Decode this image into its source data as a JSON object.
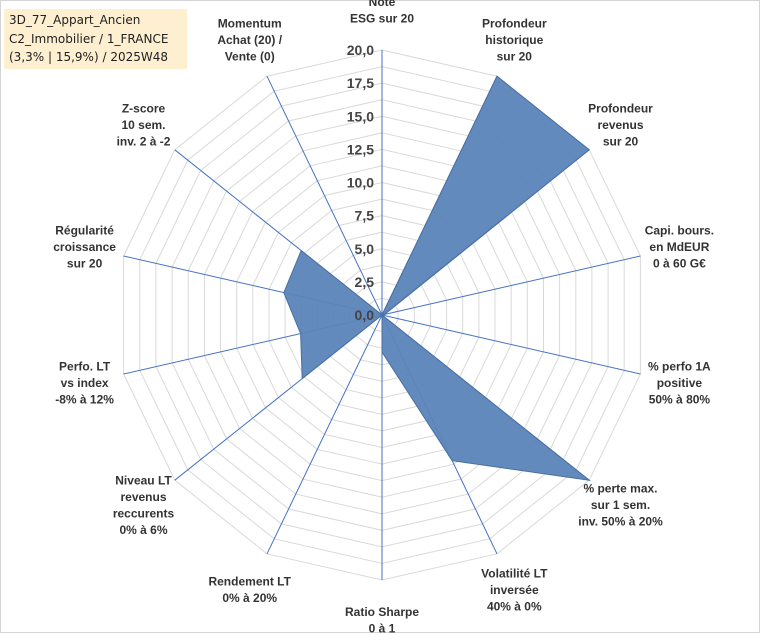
{
  "info_box": {
    "line1": "3D_77_Appart_Ancien",
    "line2": "C2_Immobilier / 1_FRANCE",
    "line3": "(3,3% | 15,9%) / 2025W48"
  },
  "colors": {
    "fill": "#5b84b8",
    "stroke": "#4a6f9f",
    "grid": "#d9d9d9",
    "spoke": "#4472c4",
    "info_box_bg": "#fdefd0"
  },
  "chart_data": {
    "type": "radar",
    "scale_min": 0,
    "scale_max": 20,
    "scale_step": 2.5,
    "ticks": [
      "0,0",
      "2,5",
      "5,0",
      "7,5",
      "10,0",
      "12,5",
      "15,0",
      "17,5",
      "20,0"
    ],
    "grid": true,
    "legend": "none",
    "axes": [
      {
        "label": [
          "Note",
          "ESG sur 20"
        ],
        "value": 0
      },
      {
        "label": [
          "Profondeur",
          "historique",
          "sur 20"
        ],
        "value": 20
      },
      {
        "label": [
          "Profondeur",
          "revenus",
          "sur 20"
        ],
        "value": 20
      },
      {
        "label": [
          "Capi. bours.",
          "en MdEUR",
          "0 à 60 G€"
        ],
        "value": 0.2
      },
      {
        "label": [
          "% perfo 1A",
          "positive",
          "50% à 80%"
        ],
        "value": 0
      },
      {
        "label": [
          "% perte max.",
          "sur 1 sem.",
          "inv. 50% à 20%"
        ],
        "value": 20
      },
      {
        "label": [
          "Volatilité LT",
          "inversée",
          "40% à 0%"
        ],
        "value": 12.2
      },
      {
        "label": [
          "Ratio Sharpe",
          "0 à 1"
        ],
        "value": 2.8
      },
      {
        "label": [
          "Rendement LT",
          "0% à 20%"
        ],
        "value": 0
      },
      {
        "label": [
          "Niveau LT",
          "revenus",
          "reccurents",
          "0% à 6%"
        ],
        "value": 7.7
      },
      {
        "label": [
          "Perfo. LT",
          "vs index",
          "-8% à 12%"
        ],
        "value": 6.3
      },
      {
        "label": [
          "Régularité",
          "croissance",
          "sur 20"
        ],
        "value": 7.6
      },
      {
        "label": [
          "Z-score",
          "10 sem.",
          "inv. 2 à -2"
        ],
        "value": 7.8
      },
      {
        "label": [
          "Momentum",
          "Achat (20) /",
          "Vente (0)"
        ],
        "value": 0
      }
    ]
  }
}
